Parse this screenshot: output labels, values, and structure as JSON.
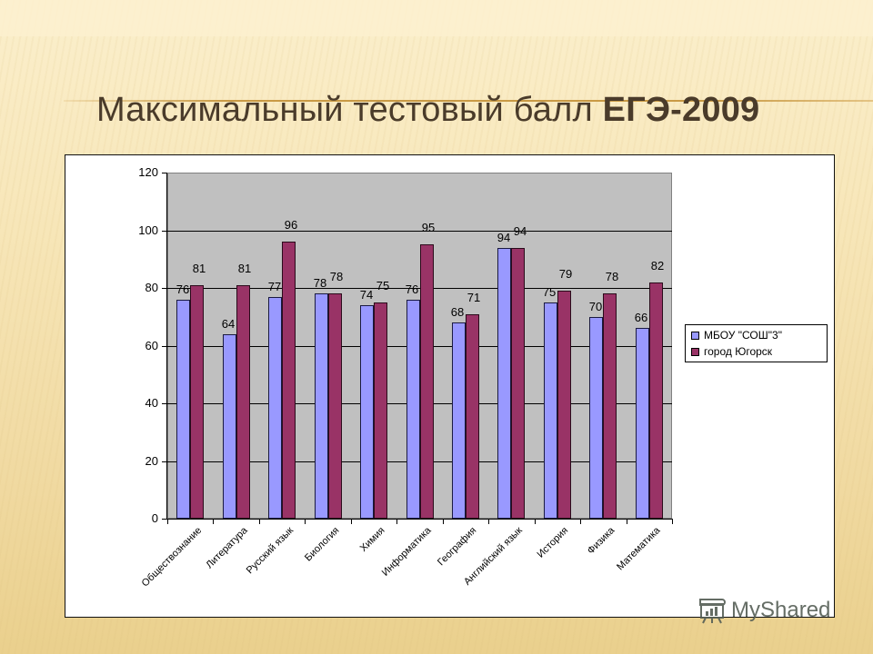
{
  "slide": {
    "title_regular": "Максимальный тестовый балл",
    "title_bold": "ЕГЭ-2009",
    "watermark": "MyShared"
  },
  "legend": {
    "items": [
      {
        "label": "МБОУ \"СОШ\"3\"",
        "color": "#9999ff"
      },
      {
        "label": "город Югорск",
        "color": "#993366"
      }
    ]
  },
  "chart_data": {
    "type": "bar",
    "title": "Максимальный тестовый балл ЕГЭ-2009",
    "xlabel": "",
    "ylabel": "",
    "ylim": [
      0,
      120
    ],
    "yticks": [
      0,
      20,
      40,
      60,
      80,
      100,
      120
    ],
    "grid": true,
    "legend_position": "right",
    "categories": [
      "Обществознание",
      "Литература",
      "Русский язык",
      "Биология",
      "Химия",
      "Информатика",
      "География",
      "Английский язык",
      "История",
      "Физика",
      "Математика"
    ],
    "series": [
      {
        "name": "МБОУ \"СОШ\"3\"",
        "color": "#9999ff",
        "values": [
          76,
          64,
          77,
          78,
          74,
          76,
          68,
          94,
          75,
          70,
          66
        ]
      },
      {
        "name": "город Югорск",
        "color": "#993366",
        "values": [
          81,
          81,
          96,
          78,
          75,
          95,
          71,
          94,
          79,
          78,
          82
        ]
      }
    ]
  }
}
